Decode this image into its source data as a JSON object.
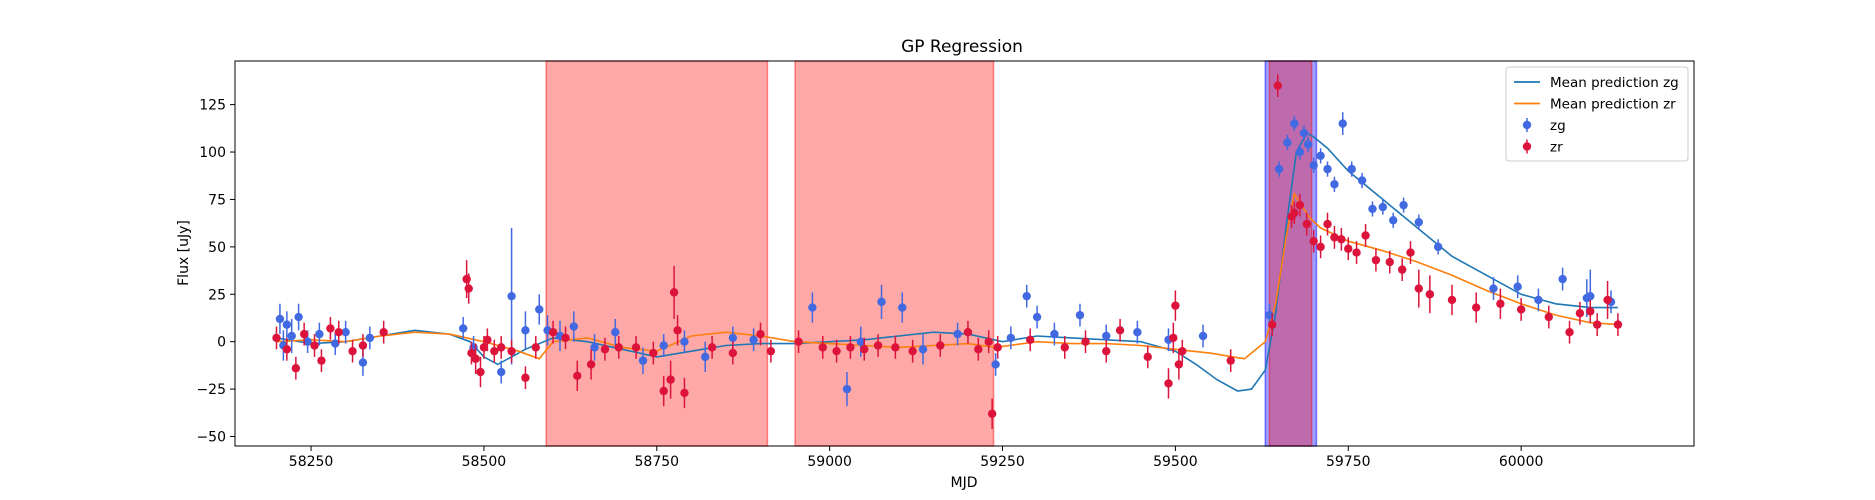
{
  "chart_data": {
    "type": "scatter",
    "title": "GP Regression",
    "xlabel": "MJD",
    "ylabel": "Flux [uJy]",
    "xlim": [
      58140,
      60250
    ],
    "ylim": [
      -55,
      148
    ],
    "xticks": [
      58250,
      58500,
      58750,
      59000,
      59250,
      59500,
      59750,
      60000
    ],
    "yticks": [
      -50,
      -25,
      0,
      25,
      50,
      75,
      100,
      125
    ],
    "legend_position": "upper right",
    "legend": [
      {
        "label": "Mean prediction zg",
        "kind": "line",
        "color": "#1f77b4"
      },
      {
        "label": "Mean prediction zr",
        "kind": "line",
        "color": "#ff7f0e"
      },
      {
        "label": "zg",
        "kind": "errorbar",
        "color": "#4169e1"
      },
      {
        "label": "zr",
        "kind": "errorbar",
        "color": "#dc143c"
      }
    ],
    "shaded_regions": [
      {
        "x0": 58590,
        "x1": 58910,
        "color": "#ff0000",
        "opacity": 0.34
      },
      {
        "x0": 58950,
        "x1": 59237,
        "color": "#ff0000",
        "opacity": 0.34
      },
      {
        "x0": 59630,
        "x1": 59704,
        "color": "#0000ff",
        "opacity": 0.38
      },
      {
        "x0": 59636,
        "x1": 59697,
        "color": "#ff0000",
        "opacity": 0.32
      }
    ],
    "series": [
      {
        "name": "Mean prediction zg",
        "kind": "line",
        "color": "#1f77b4",
        "x": [
          58200,
          58250,
          58300,
          58350,
          58400,
          58450,
          58480,
          58500,
          58520,
          58560,
          58600,
          58650,
          58700,
          58750,
          58800,
          58850,
          58900,
          58950,
          59000,
          59050,
          59100,
          59150,
          59200,
          59250,
          59300,
          59350,
          59400,
          59450,
          59500,
          59530,
          59560,
          59590,
          59610,
          59630,
          59645,
          59660,
          59675,
          59690,
          59700,
          59720,
          59750,
          59800,
          59850,
          59900,
          59950,
          60000,
          60050,
          60100,
          60140
        ],
        "y": [
          2,
          -1,
          0,
          3,
          6,
          4,
          0,
          -8,
          -12,
          -4,
          2,
          0,
          -4,
          -8,
          -5,
          -2,
          -1,
          -1,
          0,
          1,
          3,
          5,
          4,
          0,
          3,
          2,
          1,
          0,
          -5,
          -12,
          -20,
          -26,
          -25,
          -15,
          15,
          60,
          100,
          110,
          108,
          102,
          90,
          75,
          60,
          45,
          35,
          25,
          20,
          18,
          18
        ]
      },
      {
        "name": "Mean prediction zr",
        "kind": "line",
        "color": "#ff7f0e",
        "x": [
          58200,
          58250,
          58300,
          58350,
          58400,
          58450,
          58500,
          58550,
          58580,
          58600,
          58650,
          58700,
          58750,
          58800,
          58850,
          58900,
          58950,
          59000,
          59050,
          59100,
          59150,
          59200,
          59240,
          59300,
          59350,
          59400,
          59450,
          59500,
          59550,
          59600,
          59630,
          59645,
          59660,
          59672,
          59682,
          59695,
          59710,
          59750,
          59800,
          59850,
          59900,
          59950,
          60000,
          60050,
          60100,
          60140
        ],
        "y": [
          0,
          1,
          0,
          3,
          5,
          4,
          0,
          -5,
          -9,
          0,
          2,
          -3,
          -5,
          3,
          5,
          3,
          0,
          -1,
          -2,
          -3,
          -2,
          -1,
          -3,
          0,
          -1,
          -1,
          -2,
          -4,
          -6,
          -9,
          0,
          20,
          55,
          78,
          72,
          65,
          60,
          53,
          48,
          42,
          35,
          27,
          20,
          14,
          10,
          9
        ]
      },
      {
        "name": "zg",
        "kind": "errorbar",
        "color": "#4169e1",
        "x": [
          58205,
          58210,
          58215,
          58222,
          58232,
          58245,
          58262,
          58285,
          58300,
          58325,
          58335,
          58470,
          58485,
          58525,
          58540,
          58560,
          58580,
          58592,
          58610,
          58630,
          58660,
          58690,
          58730,
          58760,
          58790,
          58820,
          58860,
          58890,
          58975,
          59025,
          59045,
          59075,
          59105,
          59135,
          59185,
          59240,
          59262,
          59285,
          59300,
          59325,
          59362,
          59400,
          59445,
          59490,
          59540,
          59636,
          59650,
          59662,
          59672,
          59680,
          59686,
          59692,
          59700,
          59710,
          59720,
          59730,
          59742,
          59755,
          59770,
          59785,
          59800,
          59815,
          59830,
          59852,
          59880,
          59960,
          59995,
          60025,
          60060,
          60095,
          60100,
          60130
        ],
        "y": [
          12,
          -2,
          9,
          3,
          13,
          0,
          4,
          -1,
          5,
          -11,
          2,
          7,
          -3,
          -16,
          24,
          6,
          17,
          6,
          3,
          8,
          -3,
          5,
          -10,
          -2,
          0,
          -8,
          2,
          1,
          18,
          -25,
          0,
          21,
          18,
          -4,
          4,
          -12,
          2,
          24,
          13,
          4,
          14,
          3,
          5,
          1,
          3,
          14,
          91,
          105,
          115,
          100,
          110,
          104,
          93,
          98,
          91,
          83,
          115,
          91,
          85,
          70,
          71,
          64,
          72,
          63,
          50,
          28,
          29,
          22,
          33,
          23,
          24,
          21
        ],
        "yerr": [
          8,
          8,
          7,
          9,
          7,
          6,
          6,
          6,
          6,
          7,
          6,
          6,
          6,
          6,
          36,
          10,
          8,
          8,
          8,
          8,
          7,
          7,
          7,
          6,
          6,
          8,
          6,
          6,
          8,
          9,
          8,
          9,
          8,
          8,
          6,
          6,
          6,
          6,
          6,
          6,
          6,
          6,
          6,
          6,
          6,
          6,
          4,
          4,
          4,
          4,
          4,
          4,
          4,
          4,
          4,
          4,
          6,
          4,
          4,
          4,
          4,
          4,
          4,
          4,
          4,
          6,
          6,
          6,
          6,
          10,
          14,
          6
        ]
      },
      {
        "name": "zr",
        "kind": "errorbar",
        "color": "#dc143c",
        "x": [
          58200,
          58215,
          58228,
          58240,
          58255,
          58265,
          58278,
          58290,
          58310,
          58325,
          58355,
          58475,
          58478,
          58482,
          58488,
          58495,
          58500,
          58505,
          58515,
          58525,
          58540,
          58560,
          58575,
          58600,
          58618,
          58635,
          58655,
          58675,
          58695,
          58720,
          58745,
          58760,
          58770,
          58775,
          58780,
          58790,
          58830,
          58860,
          58900,
          58915,
          58955,
          58990,
          59010,
          59030,
          59050,
          59070,
          59095,
          59120,
          59160,
          59200,
          59215,
          59230,
          59235,
          59243,
          59290,
          59340,
          59370,
          59400,
          59420,
          59460,
          59490,
          59497,
          59500,
          59505,
          59510,
          59580,
          59640,
          59648,
          59668,
          59672,
          59680,
          59690,
          59700,
          59710,
          59720,
          59730,
          59740,
          59750,
          59762,
          59775,
          59790,
          59810,
          59828,
          59840,
          59852,
          59868,
          59900,
          59935,
          59970,
          60000,
          60040,
          60070,
          60085,
          60100,
          60110,
          60125,
          60140
        ],
        "y": [
          2,
          -4,
          -14,
          4,
          -2,
          -10,
          7,
          5,
          -5,
          -2,
          5,
          33,
          28,
          -6,
          -9,
          -16,
          -3,
          1,
          -5,
          -3,
          -5,
          -19,
          -3,
          5,
          2,
          -18,
          -12,
          -4,
          -3,
          -3,
          -6,
          -26,
          -20,
          26,
          6,
          -27,
          -3,
          -6,
          4,
          -5,
          0,
          -3,
          -5,
          -3,
          -4,
          -2,
          -3,
          -5,
          -2,
          5,
          -4,
          0,
          -38,
          -3,
          1,
          -3,
          0,
          -5,
          6,
          -8,
          -22,
          2,
          19,
          -12,
          -5,
          -10,
          9,
          135,
          66,
          68,
          72,
          62,
          53,
          50,
          62,
          55,
          54,
          49,
          47,
          56,
          43,
          42,
          38,
          47,
          28,
          25,
          22,
          18,
          20,
          17,
          13,
          5,
          15,
          16,
          9,
          22,
          9
        ],
        "yerr": [
          6,
          6,
          6,
          6,
          6,
          6,
          6,
          6,
          6,
          6,
          6,
          10,
          8,
          6,
          8,
          8,
          6,
          6,
          6,
          6,
          6,
          6,
          6,
          6,
          6,
          8,
          8,
          6,
          6,
          6,
          6,
          8,
          10,
          14,
          8,
          8,
          6,
          6,
          6,
          6,
          6,
          6,
          6,
          6,
          6,
          6,
          6,
          6,
          6,
          6,
          6,
          6,
          8,
          6,
          6,
          6,
          6,
          6,
          6,
          6,
          8,
          8,
          8,
          8,
          6,
          6,
          6,
          6,
          6,
          6,
          6,
          6,
          6,
          6,
          6,
          6,
          6,
          6,
          6,
          6,
          6,
          6,
          6,
          6,
          10,
          10,
          8,
          8,
          8,
          6,
          6,
          6,
          6,
          6,
          6,
          10,
          6
        ]
      }
    ]
  }
}
